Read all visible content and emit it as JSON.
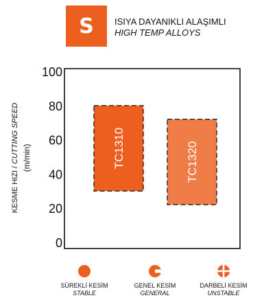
{
  "header": {
    "badge_letter": "S",
    "badge_color": "#ec5f1f",
    "title_tr": "ISIYA DAYANIKLI ALAŞIMLI",
    "title_en": "HIGH TEMP ALLOYS"
  },
  "chart_data": {
    "type": "range-bar",
    "ylabel_tr": "KESME HIZI",
    "ylabel_sep": " / ",
    "ylabel_en": "CUTTING SPEED",
    "yunit": "(m/min)",
    "ylim": [
      0,
      100
    ],
    "yticks": [
      0,
      20,
      40,
      60,
      80,
      100
    ],
    "grid": false,
    "bars": [
      {
        "label": "TC1310",
        "low": 30,
        "high": 80,
        "color": "#ec5f1f"
      },
      {
        "label": "TC1320",
        "low": 22,
        "high": 72,
        "color": "#f07d47"
      }
    ]
  },
  "legend": [
    {
      "label_tr": "SÜREKLİ KESİM",
      "label_en": "STABLE",
      "icon": "full-circle-icon"
    },
    {
      "label_tr": "GENEL KESİM",
      "label_en": "GENERAL",
      "icon": "notched-circle-icon"
    },
    {
      "label_tr": "DARBELİ KESİM",
      "label_en": "UNSTABLE",
      "icon": "quartered-circle-icon"
    }
  ]
}
